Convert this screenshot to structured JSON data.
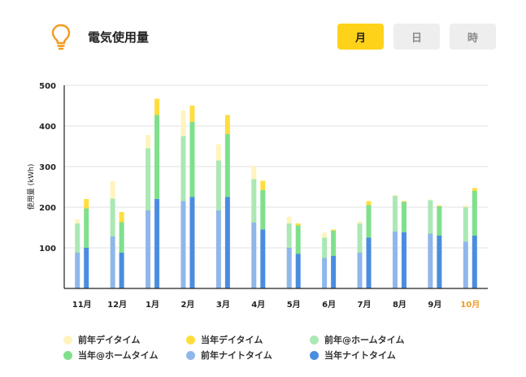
{
  "header": {
    "title": "電気使用量",
    "icon": "lightbulb-icon",
    "icon_color": "#f39a1e",
    "tabs": [
      {
        "label": "月",
        "active": true
      },
      {
        "label": "日",
        "active": false
      },
      {
        "label": "時",
        "active": false
      }
    ]
  },
  "colors": {
    "prev_day": "#fff4bf",
    "curr_day": "#ffdd3f",
    "prev_home": "#abe8b4",
    "curr_home": "#7fe08c",
    "prev_night": "#8fb7ea",
    "curr_night": "#4a8de0",
    "highlight_month": "#f39a1e"
  },
  "chart_data": {
    "type": "bar",
    "stacked": true,
    "title": "",
    "xlabel": "",
    "ylabel": "使用量 (kWh)",
    "ylim": [
      0,
      500
    ],
    "yticks": [
      100,
      200,
      300,
      400,
      500
    ],
    "grid": true,
    "categories": [
      "11月",
      "12月",
      "1月",
      "2月",
      "3月",
      "4月",
      "5月",
      "6月",
      "7月",
      "8月",
      "9月",
      "10月"
    ],
    "highlight_category": "10月",
    "legend_position": "bottom",
    "series": [
      {
        "name": "前年ナイトタイム",
        "group": "前年",
        "layer": "night",
        "values": [
          88,
          128,
          192,
          215,
          192,
          162,
          100,
          75,
          88,
          140,
          135,
          115
        ]
      },
      {
        "name": "前年@ホームタイム",
        "group": "前年",
        "layer": "home",
        "values": [
          72,
          93,
          153,
          160,
          123,
          107,
          60,
          50,
          72,
          88,
          82,
          85
        ]
      },
      {
        "name": "前年デイタイム",
        "group": "前年",
        "layer": "day",
        "values": [
          10,
          43,
          33,
          63,
          40,
          33,
          17,
          12,
          5,
          2,
          2,
          5
        ]
      },
      {
        "name": "当年ナイトタイム",
        "group": "当年",
        "layer": "night",
        "values": [
          100,
          88,
          220,
          225,
          225,
          145,
          85,
          80,
          125,
          138,
          130,
          130
        ]
      },
      {
        "name": "当年@ホームタイム",
        "group": "当年",
        "layer": "home",
        "values": [
          97,
          75,
          207,
          185,
          155,
          97,
          70,
          62,
          80,
          75,
          72,
          110
        ]
      },
      {
        "name": "当年デイタイム",
        "group": "当年",
        "layer": "day",
        "values": [
          23,
          25,
          40,
          40,
          47,
          23,
          5,
          3,
          10,
          2,
          2,
          7
        ]
      }
    ]
  },
  "legend": [
    {
      "label": "前年デイタイム",
      "color": "#fff4bf"
    },
    {
      "label": "当年デイタイム",
      "color": "#ffdd3f"
    },
    {
      "label": "前年@ホームタイム",
      "color": "#abe8b4"
    },
    {
      "label": "当年@ホームタイム",
      "color": "#7fe08c"
    },
    {
      "label": "前年ナイトタイム",
      "color": "#8fb7ea"
    },
    {
      "label": "当年ナイトタイム",
      "color": "#4a8de0"
    }
  ]
}
